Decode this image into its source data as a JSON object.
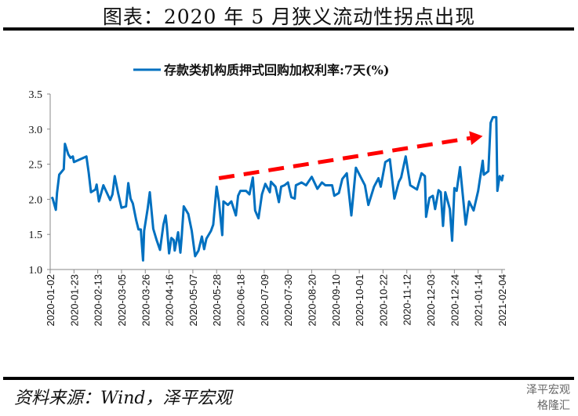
{
  "header": {
    "title": "图表：2020 年 5 月狭义流动性拐点出现"
  },
  "footer": {
    "source": "资料来源：Wind，泽平宏观"
  },
  "watermark": {
    "line1": "泽平宏观",
    "line2": "格隆汇"
  },
  "colors": {
    "series": "#0070C0",
    "arrow": "#FF0000",
    "axis": "#888888"
  },
  "chart_data": {
    "type": "line",
    "title": "",
    "legend": {
      "labels": [
        "存款类机构质押式回购加权利率:7天(%)"
      ],
      "position": "top"
    },
    "xlabel": "",
    "ylabel": "",
    "ylim": [
      1.0,
      3.5
    ],
    "yticks": [
      "1.0",
      "1.5",
      "2.0",
      "2.5",
      "3.0",
      "3.5"
    ],
    "xticks": [
      "2020-01-02",
      "2020-01-23",
      "2020-02-13",
      "2020-03-05",
      "2020-03-26",
      "2020-04-16",
      "2020-05-07",
      "2020-05-28",
      "2020-06-18",
      "2020-07-09",
      "2020-07-30",
      "2020-08-20",
      "2020-09-10",
      "2020-10-01",
      "2020-10-22",
      "2020-11-12",
      "2020-12-03",
      "2020-12-24",
      "2021-01-14",
      "2021-02-04"
    ],
    "x_unit": "days since 2020-01-02",
    "xlim": [
      0,
      399
    ],
    "series": [
      {
        "name": "存款类机构质押式回购加权利率:7天(%)",
        "points": [
          [
            1,
            2.01
          ],
          [
            2,
            2.02
          ],
          [
            5,
            1.85
          ],
          [
            6,
            2.09
          ],
          [
            8,
            2.35
          ],
          [
            12,
            2.43
          ],
          [
            13,
            2.79
          ],
          [
            16,
            2.64
          ],
          [
            18,
            2.59
          ],
          [
            20,
            2.61
          ],
          [
            21,
            2.53
          ],
          [
            32,
            2.61
          ],
          [
            34,
            2.38
          ],
          [
            36,
            2.1
          ],
          [
            40,
            2.14
          ],
          [
            41,
            2.21
          ],
          [
            43,
            1.97
          ],
          [
            47,
            2.2
          ],
          [
            53,
            1.99
          ],
          [
            55,
            2.07
          ],
          [
            57,
            2.33
          ],
          [
            60,
            2.09
          ],
          [
            63,
            1.88
          ],
          [
            67,
            1.9
          ],
          [
            69,
            2.23
          ],
          [
            71,
            2.01
          ],
          [
            73,
            1.94
          ],
          [
            76,
            1.7
          ],
          [
            78,
            1.57
          ],
          [
            80,
            1.57
          ],
          [
            82,
            1.13
          ],
          [
            83,
            1.55
          ],
          [
            86,
            1.86
          ],
          [
            88,
            2.1
          ],
          [
            91,
            1.58
          ],
          [
            94,
            1.42
          ],
          [
            97,
            1.28
          ],
          [
            100,
            1.64
          ],
          [
            102,
            1.77
          ],
          [
            103,
            1.62
          ],
          [
            105,
            1.23
          ],
          [
            107,
            1.45
          ],
          [
            109,
            1.42
          ],
          [
            110,
            1.27
          ],
          [
            113,
            1.53
          ],
          [
            115,
            1.24
          ],
          [
            116,
            1.44
          ],
          [
            118,
            1.9
          ],
          [
            122,
            1.79
          ],
          [
            125,
            1.55
          ],
          [
            128,
            1.19
          ],
          [
            131,
            1.27
          ],
          [
            134,
            1.47
          ],
          [
            136,
            1.29
          ],
          [
            138,
            1.44
          ],
          [
            142,
            1.55
          ],
          [
            144,
            1.64
          ],
          [
            147,
            2.18
          ],
          [
            149,
            1.97
          ],
          [
            152,
            1.49
          ],
          [
            153,
            1.97
          ],
          [
            157,
            1.92
          ],
          [
            160,
            1.97
          ],
          [
            164,
            1.77
          ],
          [
            166,
            2.05
          ],
          [
            168,
            2.12
          ],
          [
            173,
            2.12
          ],
          [
            176,
            2.07
          ],
          [
            179,
            2.31
          ],
          [
            181,
            1.84
          ],
          [
            184,
            1.73
          ],
          [
            187,
            2.07
          ],
          [
            190,
            2.22
          ],
          [
            194,
            2.1
          ],
          [
            195,
            2.25
          ],
          [
            199,
            2.18
          ],
          [
            202,
            1.96
          ],
          [
            204,
            2.18
          ],
          [
            207,
            2.2
          ],
          [
            210,
            2.24
          ],
          [
            213,
            2.03
          ],
          [
            216,
            2.01
          ],
          [
            217,
            2.2
          ],
          [
            222,
            2.24
          ],
          [
            226,
            2.2
          ],
          [
            231,
            2.32
          ],
          [
            236,
            2.15
          ],
          [
            240,
            2.24
          ],
          [
            243,
            2.2
          ],
          [
            249,
            2.2
          ],
          [
            251,
            2.05
          ],
          [
            255,
            2.09
          ],
          [
            258,
            2.29
          ],
          [
            262,
            2.37
          ],
          [
            266,
            1.77
          ],
          [
            270,
            2.45
          ],
          [
            278,
            2.2
          ],
          [
            281,
            1.92
          ],
          [
            286,
            2.18
          ],
          [
            290,
            2.3
          ],
          [
            292,
            2.18
          ],
          [
            296,
            2.53
          ],
          [
            300,
            2.57
          ],
          [
            304,
            2.01
          ],
          [
            308,
            2.25
          ],
          [
            310,
            2.31
          ],
          [
            314,
            2.61
          ],
          [
            318,
            2.2
          ],
          [
            324,
            2.14
          ],
          [
            328,
            2.37
          ],
          [
            331,
            2.33
          ],
          [
            332,
            1.75
          ],
          [
            335,
            2.02
          ],
          [
            338,
            2.05
          ],
          [
            340,
            1.86
          ],
          [
            343,
            2.13
          ],
          [
            345,
            2.1
          ],
          [
            347,
            1.62
          ],
          [
            349,
            2.1
          ],
          [
            353,
            1.86
          ],
          [
            355,
            1.41
          ],
          [
            357,
            2.16
          ],
          [
            359,
            2.12
          ],
          [
            362,
            2.46
          ],
          [
            367,
            1.64
          ],
          [
            370,
            1.97
          ],
          [
            374,
            1.84
          ],
          [
            378,
            2.12
          ],
          [
            382,
            2.55
          ],
          [
            383,
            2.35
          ],
          [
            387,
            2.4
          ],
          [
            389,
            3.09
          ],
          [
            391,
            3.17
          ],
          [
            394,
            3.17
          ],
          [
            395,
            2.12
          ],
          [
            397,
            2.33
          ],
          [
            399,
            2.27
          ],
          [
            400,
            2.35
          ]
        ]
      }
    ],
    "annotations": [
      {
        "type": "arrow",
        "style": "dashed",
        "from": [
          149,
          2.3
        ],
        "to": [
          382,
          2.9
        ]
      }
    ],
    "grid": false
  }
}
